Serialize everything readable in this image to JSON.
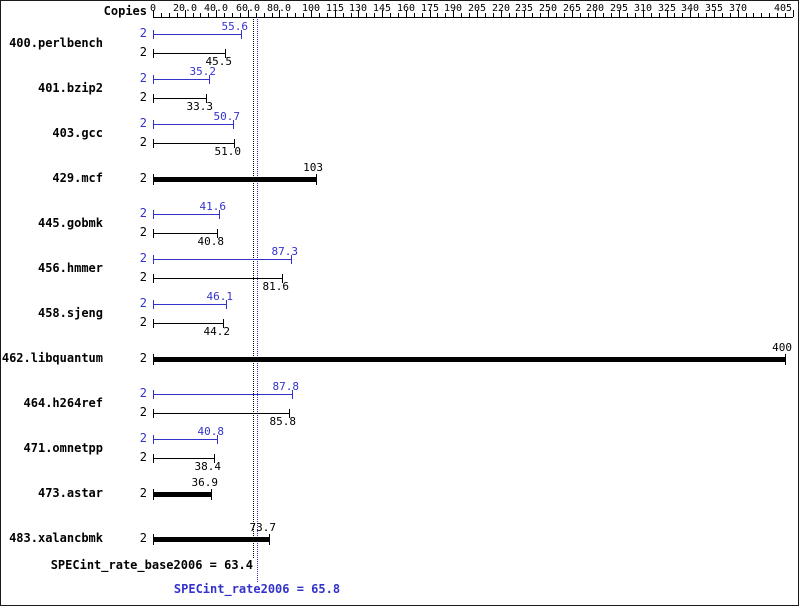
{
  "header": {
    "copies_label": "Copies"
  },
  "chart_data": {
    "type": "bar",
    "orientation": "horizontal",
    "title": "",
    "xlabel": "",
    "ylabel": "Copies",
    "axis": {
      "min": 0,
      "max": 405,
      "minor_step": 5,
      "ticks": [
        {
          "v": 0,
          "label": "0"
        },
        {
          "v": 20,
          "label": "20.0"
        },
        {
          "v": 40,
          "label": "40.0"
        },
        {
          "v": 60,
          "label": "60.0"
        },
        {
          "v": 80,
          "label": "80.0"
        },
        {
          "v": 100,
          "label": "100"
        },
        {
          "v": 115,
          "label": "115"
        },
        {
          "v": 130,
          "label": "130"
        },
        {
          "v": 145,
          "label": "145"
        },
        {
          "v": 160,
          "label": "160"
        },
        {
          "v": 175,
          "label": "175"
        },
        {
          "v": 190,
          "label": "190"
        },
        {
          "v": 205,
          "label": "205"
        },
        {
          "v": 220,
          "label": "220"
        },
        {
          "v": 235,
          "label": "235"
        },
        {
          "v": 250,
          "label": "250"
        },
        {
          "v": 265,
          "label": "265"
        },
        {
          "v": 280,
          "label": "280"
        },
        {
          "v": 295,
          "label": "295"
        },
        {
          "v": 310,
          "label": "310"
        },
        {
          "v": 325,
          "label": "325"
        },
        {
          "v": 340,
          "label": "340"
        },
        {
          "v": 355,
          "label": "355"
        },
        {
          "v": 370,
          "label": "370"
        },
        {
          "v": 405,
          "label": "405"
        }
      ]
    },
    "series_colors": {
      "peak": "#3333cc",
      "base": "#000000"
    },
    "benchmarks": [
      {
        "name": "400.perlbench",
        "copies": "2",
        "bars": [
          {
            "kind": "peak",
            "value": 55.6,
            "label": "55.6"
          },
          {
            "kind": "base",
            "value": 45.5,
            "label": "45.5"
          }
        ]
      },
      {
        "name": "401.bzip2",
        "copies": "2",
        "bars": [
          {
            "kind": "peak",
            "value": 35.2,
            "label": "35.2"
          },
          {
            "kind": "base",
            "value": 33.3,
            "label": "33.3"
          }
        ]
      },
      {
        "name": "403.gcc",
        "copies": "2",
        "bars": [
          {
            "kind": "peak",
            "value": 50.7,
            "label": "50.7"
          },
          {
            "kind": "base",
            "value": 51.0,
            "label": "51.0"
          }
        ]
      },
      {
        "name": "429.mcf",
        "copies": "2",
        "bars": [
          {
            "kind": "single",
            "value": 103,
            "label": "103"
          }
        ]
      },
      {
        "name": "445.gobmk",
        "copies": "2",
        "bars": [
          {
            "kind": "peak",
            "value": 41.6,
            "label": "41.6"
          },
          {
            "kind": "base",
            "value": 40.8,
            "label": "40.8"
          }
        ]
      },
      {
        "name": "456.hmmer",
        "copies": "2",
        "bars": [
          {
            "kind": "peak",
            "value": 87.3,
            "label": "87.3"
          },
          {
            "kind": "base",
            "value": 81.6,
            "label": "81.6"
          }
        ]
      },
      {
        "name": "458.sjeng",
        "copies": "2",
        "bars": [
          {
            "kind": "peak",
            "value": 46.1,
            "label": "46.1"
          },
          {
            "kind": "base",
            "value": 44.2,
            "label": "44.2"
          }
        ]
      },
      {
        "name": "462.libquantum",
        "copies": "2",
        "bars": [
          {
            "kind": "single",
            "value": 400,
            "label": "400"
          }
        ]
      },
      {
        "name": "464.h264ref",
        "copies": "2",
        "bars": [
          {
            "kind": "peak",
            "value": 87.8,
            "label": "87.8"
          },
          {
            "kind": "base",
            "value": 85.8,
            "label": "85.8"
          }
        ]
      },
      {
        "name": "471.omnetpp",
        "copies": "2",
        "bars": [
          {
            "kind": "peak",
            "value": 40.8,
            "label": "40.8"
          },
          {
            "kind": "base",
            "value": 38.4,
            "label": "38.4"
          }
        ]
      },
      {
        "name": "473.astar",
        "copies": "2",
        "bars": [
          {
            "kind": "single",
            "value": 36.9,
            "label": "36.9"
          }
        ]
      },
      {
        "name": "483.xalancbmk",
        "copies": "2",
        "bars": [
          {
            "kind": "single",
            "value": 73.7,
            "label": "73.7"
          }
        ]
      }
    ],
    "reference_lines": [
      {
        "kind": "base",
        "value": 63.4,
        "color": "#000000",
        "style": "dotted"
      },
      {
        "kind": "peak",
        "value": 65.8,
        "color": "#3333cc",
        "style": "dotted"
      }
    ],
    "footer": {
      "base_summary": "SPECint_rate_base2006 = 63.4",
      "peak_summary": "SPECint_rate2006 = 65.8"
    }
  }
}
